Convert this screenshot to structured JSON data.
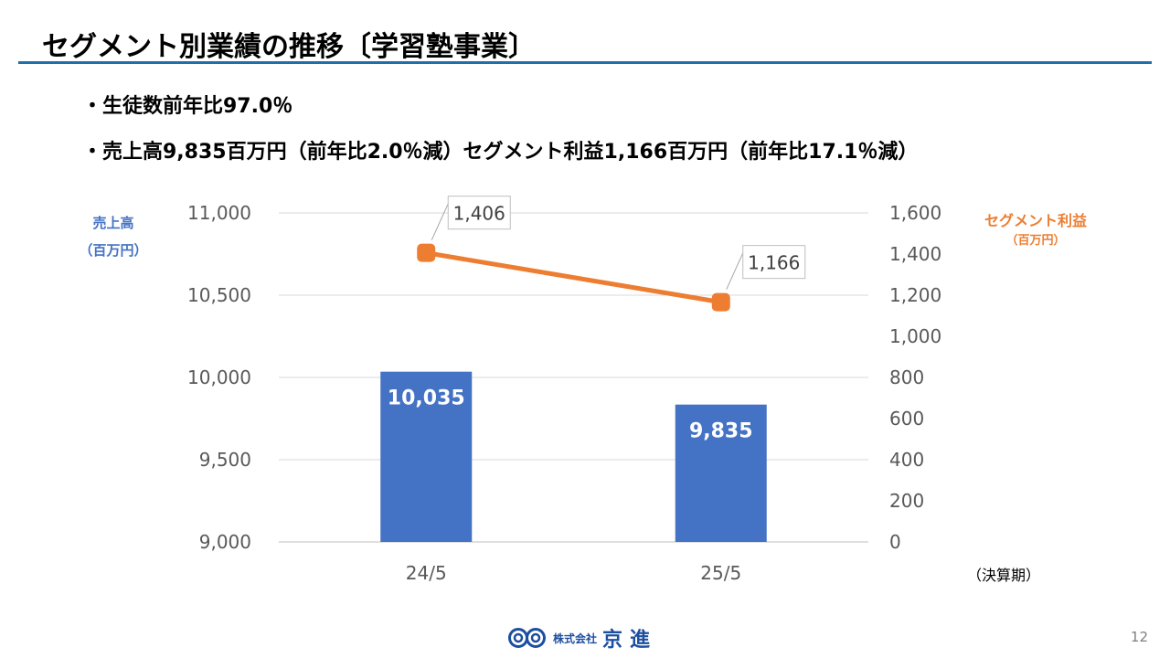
{
  "title": "セグメント別業績の推移〔学習塾事業〕",
  "bullets": [
    {
      "dot": "・",
      "text": "生徒数前年比97.0％"
    },
    {
      "dot": "・",
      "text": "売上高9,835百万円（前年比2.0％減）セグメント利益1,166百万円（前年比17.1％減）"
    }
  ],
  "colors": {
    "title_rule": "#1f6fa8",
    "bar": "#4472c4",
    "line": "#ed7d31",
    "left_axis_title": "#4472c4",
    "right_axis_title": "#ed7d31"
  },
  "chart_data": {
    "type": "bar",
    "categories": [
      "24/5",
      "25/5"
    ],
    "left_axis": {
      "title_line1": "売上高",
      "title_line2": "（百万円）",
      "ylim": [
        9000,
        11000
      ],
      "ticks": [
        "9,000",
        "9,500",
        "10,000",
        "10,500",
        "11,000"
      ]
    },
    "right_axis": {
      "title_line1": "セグメント利益",
      "title_line2": "（百万円）",
      "ylim": [
        0,
        1600
      ],
      "ticks": [
        "0",
        "200",
        "400",
        "600",
        "800",
        "1,000",
        "1,200",
        "1,400",
        "1,600"
      ]
    },
    "x_axis_note": "（決算期）",
    "grid": true,
    "series": [
      {
        "kind": "bar",
        "axis": "left",
        "values": [
          10035,
          9835
        ],
        "labels": [
          "10,035",
          "9,835"
        ]
      },
      {
        "kind": "line",
        "axis": "right",
        "values": [
          1406,
          1166
        ],
        "labels": [
          "1,406",
          "1,166"
        ]
      }
    ]
  },
  "footer": {
    "company_prefix": "株式会社",
    "company_name": "京進",
    "page_number": "12"
  }
}
